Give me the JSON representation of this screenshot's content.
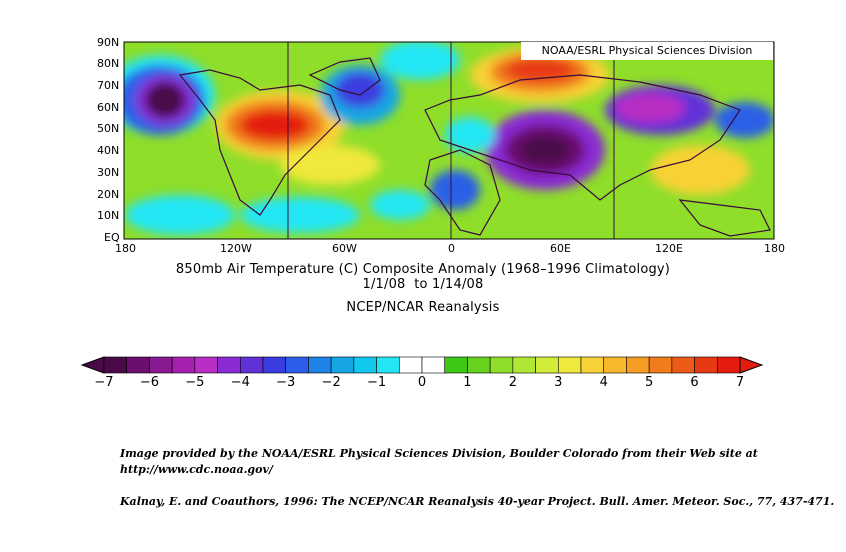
{
  "map": {
    "watermark": "NOAA/ESRL Physical Sciences Division",
    "lat_labels": [
      "90N",
      "80N",
      "70N",
      "60N",
      "50N",
      "40N",
      "30N",
      "20N",
      "10N",
      "EQ"
    ],
    "lon_labels": [
      "180",
      "120W",
      "60W",
      "0",
      "60E",
      "120E",
      "180"
    ]
  },
  "title": {
    "line1": "850mb Air Temperature (C) Composite Anomaly (1968–1996 Climatology)",
    "line2": "1/1/08  to 1/14/08",
    "line3": "NCEP/NCAR Reanalysis"
  },
  "colorbar": {
    "ticks": [
      "−7",
      "−6",
      "−5",
      "−4",
      "−3",
      "−2",
      "−1",
      "0",
      "1",
      "2",
      "3",
      "4",
      "5",
      "6",
      "7"
    ],
    "colors": [
      "#4a0a4a",
      "#6a0f6e",
      "#8a1a92",
      "#a61fae",
      "#b92ec4",
      "#8a2bd4",
      "#6030d8",
      "#3a3ce0",
      "#2a5ee8",
      "#1e82e6",
      "#16a6e4",
      "#10c8ee",
      "#22e6f4",
      "#ffffff",
      "#ffffff",
      "#3cc814",
      "#66d21e",
      "#8ede2a",
      "#b0e634",
      "#d2ec3a",
      "#f0e83a",
      "#f8d236",
      "#f8b82c",
      "#f49c24",
      "#f07c1c",
      "#ec5a16",
      "#e83a12",
      "#e41c10"
    ]
  },
  "credits": {
    "line1": "Image provided by the NOAA/ESRL Physical Sciences Division, Boulder Colorado from their Web site at",
    "line2": "http://www.cdc.noaa.gov/",
    "line3": "Kalnay, E. and Coauthors, 1996: The NCEP/NCAR Reanalysis 40-year Project. Bull. Amer. Meteor. Soc., 77, 437-471."
  }
}
